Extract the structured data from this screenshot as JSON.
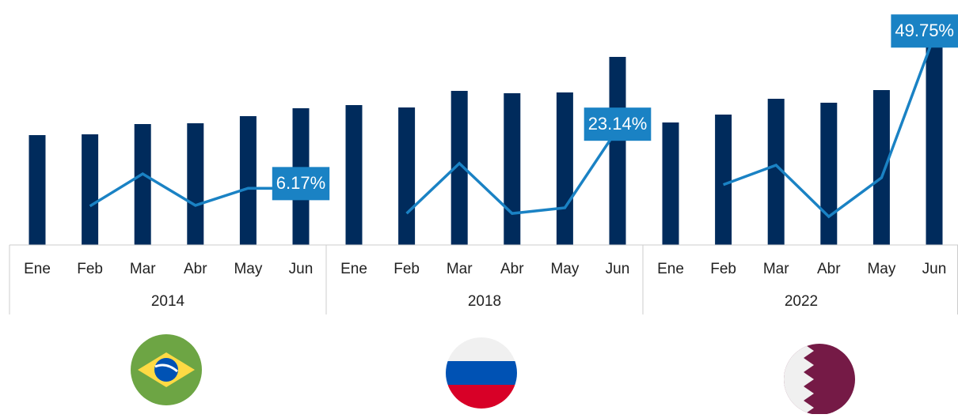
{
  "chart_data": {
    "type": "bar",
    "categories": [
      "Ene",
      "Feb",
      "Mar",
      "Abr",
      "May",
      "Jun",
      "Ene",
      "Feb",
      "Mar",
      "Abr",
      "May",
      "Jun",
      "Ene",
      "Feb",
      "Mar",
      "Abr",
      "May",
      "Jun"
    ],
    "groups": [
      "2014",
      "2018",
      "2022"
    ],
    "ylim": [
      0,
      288
    ],
    "y2lim": [
      -10,
      55
    ],
    "series": [
      {
        "type": "bar",
        "color": "#002b5c",
        "values": [
          139,
          140,
          153,
          154,
          163,
          173,
          177,
          174,
          195,
          192,
          193,
          238,
          155,
          165,
          185,
          180,
          196,
          275
        ]
      },
      {
        "type": "line",
        "axis": "y2",
        "color": "#1a82c4",
        "values": [
          null,
          1.1,
          10.3,
          1.3,
          6.2,
          6.17,
          null,
          -1.0,
          13.3,
          -1.0,
          0.6,
          23.14,
          null,
          7.2,
          12.8,
          -1.9,
          9.2,
          49.75
        ],
        "value_labels": [
          null,
          null,
          null,
          null,
          null,
          "6.17%",
          null,
          null,
          null,
          null,
          null,
          "23.14%",
          null,
          null,
          null,
          null,
          null,
          "49.75%"
        ]
      }
    ]
  }
}
